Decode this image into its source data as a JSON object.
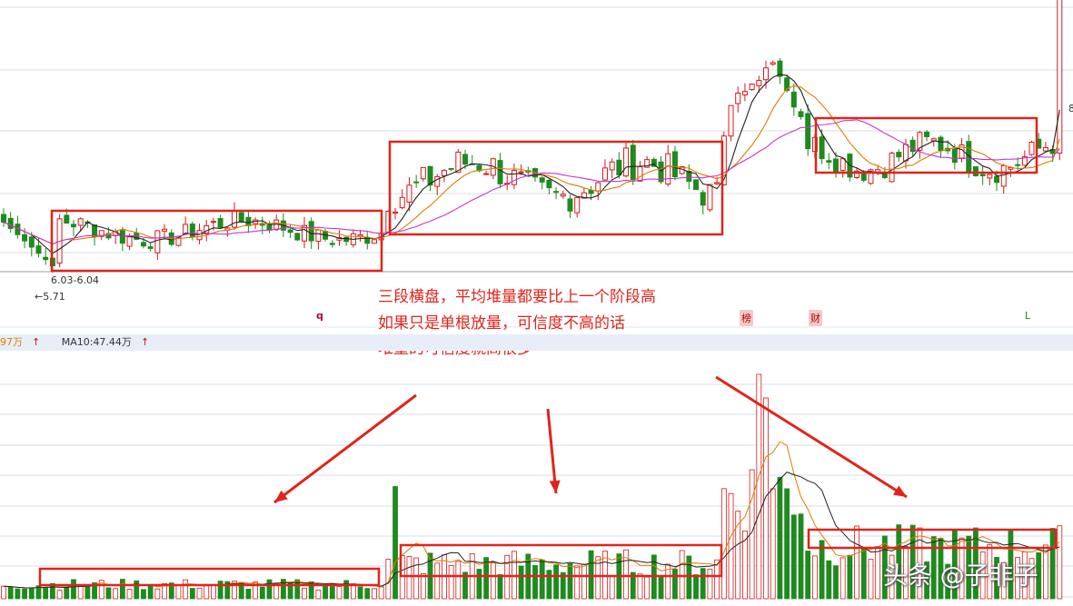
{
  "chart_data": [
    {
      "type": "candlestick",
      "title": "",
      "ma_lines": [
        "ma5",
        "ma10",
        "ma20"
      ],
      "annotations": {
        "low_marker": "5.71",
        "range_marker": "6.03-6.04"
      },
      "consolidation_boxes": 3,
      "segments": [
        {
          "start": 0,
          "end": 55,
          "base": 6.1,
          "amp": 0.25
        },
        {
          "start": 55,
          "end": 103,
          "base": 6.75,
          "amp": 0.45
        },
        {
          "start": 103,
          "end": 115,
          "base": 7.45,
          "amp": 0.9
        },
        {
          "start": 115,
          "end": 152,
          "base": 7.05,
          "amp": 0.35
        }
      ]
    },
    {
      "type": "bar",
      "name": "volume",
      "ma_labels": {
        "ma5": "97万",
        "ma10": "MA10:47.44万"
      }
    }
  ],
  "annotation": {
    "line1": "三段横盘，平均堆量都要比上一个阶段高",
    "line2": "如果只是单根放量，可信度不高的话",
    "line3": "堆量的可信度就高很多"
  },
  "markers": {
    "q": "q",
    "bang": "榜",
    "cai": "财",
    "L": "L"
  },
  "watermark": "头条 @子非子",
  "price_right_edge": "8",
  "colors": {
    "up": "#d61a1a",
    "down": "#1f8a1f",
    "ma5": "#e07b00",
    "ma10": "#222222",
    "ma20": "#cc33cc",
    "box": "#e0241b"
  }
}
